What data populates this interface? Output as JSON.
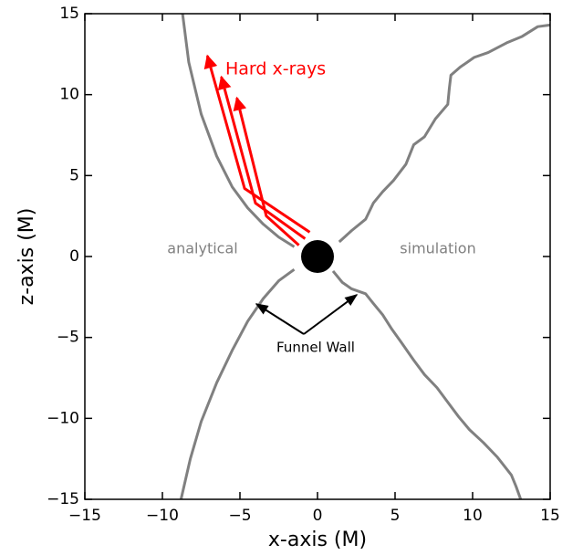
{
  "chart_data": {
    "type": "line",
    "xlabel": "x-axis (M)",
    "ylabel": "z-axis (M)",
    "xlim": [
      -15,
      15
    ],
    "ylim": [
      -15,
      15
    ],
    "xticks": [
      {
        "value": -15,
        "label": "−15"
      },
      {
        "value": -10,
        "label": "−10"
      },
      {
        "value": -5,
        "label": "−5"
      },
      0,
      5,
      10,
      15
    ],
    "yticks": [
      {
        "value": -15,
        "label": "−15"
      },
      {
        "value": -10,
        "label": "−10"
      },
      {
        "value": -5,
        "label": "−5"
      },
      0,
      5,
      10,
      15
    ],
    "series": [
      {
        "color": "#808080",
        "x": [
          -1.5,
          -2.5,
          -3.5,
          -4.5,
          -5.5,
          -6.5,
          -7.5,
          -8.3,
          -8.7
        ],
        "values": [
          0.6,
          1.2,
          2.0,
          3.0,
          4.3,
          6.2,
          8.8,
          12.0,
          15
        ]
      },
      {
        "color": "#808080",
        "x": [
          -1.5,
          -2.5,
          -3.5,
          -4.5,
          -5.5,
          -6.5,
          -7.5,
          -8.2,
          -8.8
        ],
        "values": [
          -0.8,
          -1.5,
          -2.6,
          -4.0,
          -5.8,
          -7.8,
          -10.2,
          -12.5,
          -15
        ]
      },
      {
        "color": "#808080",
        "x": [
          1.4,
          2.2,
          3.1,
          3.6,
          4.2,
          4.9,
          5.7,
          6.2,
          6.9,
          7.6,
          8.4,
          8.5,
          8.6,
          9.2,
          10.1,
          11.0,
          12.2,
          13.2,
          14.2,
          15
        ],
        "values": [
          0.9,
          1.6,
          2.3,
          3.3,
          4.0,
          4.7,
          5.7,
          6.9,
          7.4,
          8.5,
          9.4,
          10.4,
          11.2,
          11.7,
          12.3,
          12.6,
          13.2,
          13.6,
          14.2,
          14.3
        ]
      },
      {
        "color": "#808080",
        "x": [
          1.0,
          1.6,
          2.2,
          3.1,
          3.6,
          4.2,
          4.8,
          5.4,
          6.2,
          6.9,
          7.7,
          8.4,
          9.1,
          9.8,
          10.7,
          11.6,
          12.5,
          12.8,
          13.1
        ],
        "values": [
          -0.9,
          -1.6,
          -2.0,
          -2.3,
          -2.9,
          -3.6,
          -4.5,
          -5.3,
          -6.4,
          -7.3,
          -8.1,
          -9.0,
          -9.9,
          -10.7,
          -11.5,
          -12.4,
          -13.5,
          -14.2,
          -15
        ]
      },
      {
        "color": "#ff0000",
        "arrow": true,
        "x": [
          -0.5,
          -4.7,
          -7.1
        ],
        "values": [
          1.5,
          4.2,
          12.4
        ]
      },
      {
        "color": "#ff0000",
        "arrow": true,
        "x": [
          -0.8,
          -4.0,
          -6.2
        ],
        "values": [
          1.1,
          3.3,
          11.1
        ]
      },
      {
        "color": "#ff0000",
        "arrow": true,
        "x": [
          -1.2,
          -3.3,
          -5.2
        ],
        "values": [
          0.7,
          2.5,
          9.8
        ]
      }
    ],
    "annotations": [
      {
        "text": "Hard x-rays",
        "color": "#ff0000"
      },
      {
        "text": "analytical",
        "color": "#808080"
      },
      {
        "text": "simulation",
        "color": "#808080"
      },
      {
        "text": "Funnel Wall",
        "color": "#000000"
      }
    ]
  }
}
